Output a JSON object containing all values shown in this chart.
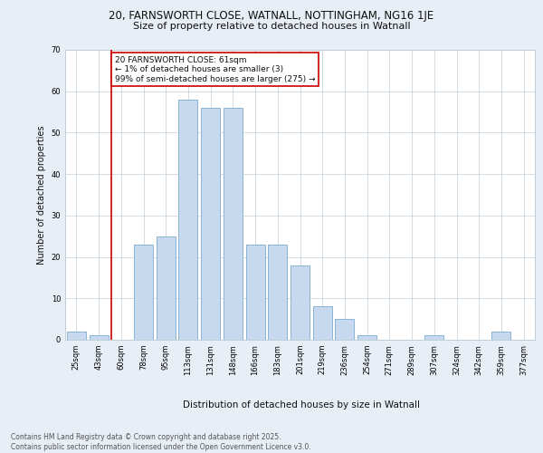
{
  "title_line1": "20, FARNSWORTH CLOSE, WATNALL, NOTTINGHAM, NG16 1JE",
  "title_line2": "Size of property relative to detached houses in Watnall",
  "xlabel": "Distribution of detached houses by size in Watnall",
  "ylabel": "Number of detached properties",
  "categories": [
    "25sqm",
    "43sqm",
    "60sqm",
    "78sqm",
    "95sqm",
    "113sqm",
    "131sqm",
    "148sqm",
    "166sqm",
    "183sqm",
    "201sqm",
    "219sqm",
    "236sqm",
    "254sqm",
    "271sqm",
    "289sqm",
    "307sqm",
    "324sqm",
    "342sqm",
    "359sqm",
    "377sqm"
  ],
  "values": [
    2,
    1,
    0,
    23,
    25,
    58,
    56,
    56,
    23,
    23,
    18,
    8,
    5,
    1,
    0,
    0,
    1,
    0,
    0,
    2,
    0
  ],
  "bar_color": "#c6d9ee",
  "bar_edge_color": "#8ab4d4",
  "vline_index": 2,
  "vline_color": "#cc0000",
  "ylim": [
    0,
    70
  ],
  "yticks": [
    0,
    10,
    20,
    30,
    40,
    50,
    60,
    70
  ],
  "annotation_line1": "20 FARNSWORTH CLOSE: 61sqm",
  "annotation_line2": "← 1% of detached houses are smaller (3)",
  "annotation_line3": "99% of semi-detached houses are larger (275) →",
  "annotation_box_edgecolor": "#cc0000",
  "footer_line1": "Contains HM Land Registry data © Crown copyright and database right 2025.",
  "footer_line2": "Contains public sector information licensed under the Open Government Licence v3.0.",
  "bg_color": "#e8eef5",
  "plot_bg": "#ffffff",
  "grid_color": "#c0cdd8",
  "title1_fontsize": 8.5,
  "title2_fontsize": 8,
  "ylabel_fontsize": 7,
  "xlabel_fontsize": 7.5,
  "tick_fontsize": 6,
  "annotation_fontsize": 6.5,
  "footer_fontsize": 5.5
}
